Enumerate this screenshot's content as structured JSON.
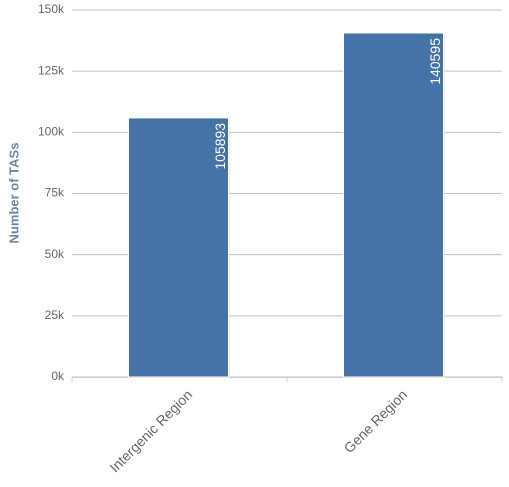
{
  "chart_data": {
    "type": "bar",
    "y_label": "Number of TASs",
    "categories": [
      "Intergenic Region",
      "Gene Region"
    ],
    "values": [
      105893,
      140595
    ],
    "color": "#4572a7",
    "ylim": [
      0,
      150000
    ],
    "yticks": [
      {
        "value": 0,
        "label": "0k"
      },
      {
        "value": 25000,
        "label": "25k"
      },
      {
        "value": 50000,
        "label": "50k"
      },
      {
        "value": 75000,
        "label": "75k"
      },
      {
        "value": 100000,
        "label": "100k"
      },
      {
        "value": 125000,
        "label": "125k"
      },
      {
        "value": 150000,
        "label": "150k"
      }
    ],
    "grid": true
  }
}
